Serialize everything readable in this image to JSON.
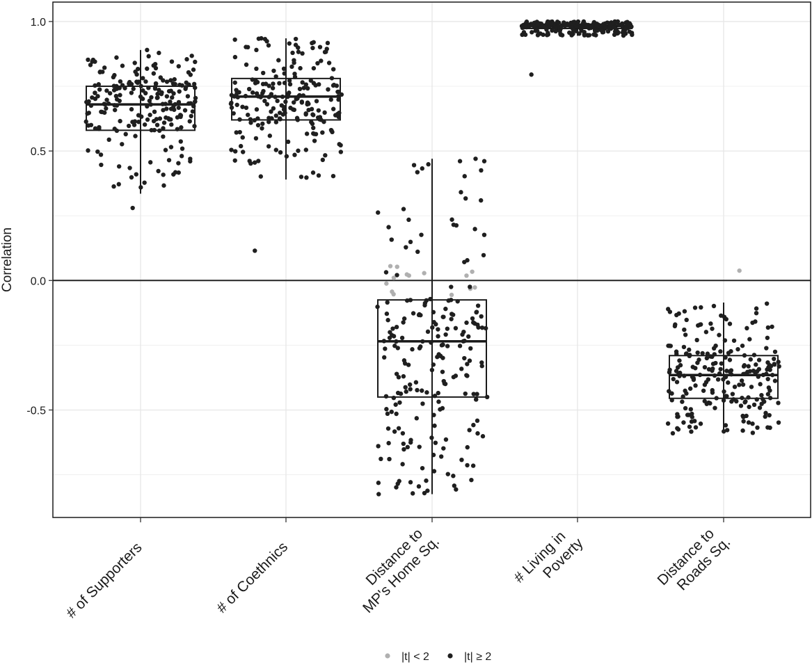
{
  "chart_data": {
    "type": "boxplot-jitter",
    "title": "",
    "xlabel": "",
    "ylabel": "Correlation",
    "ylim": [
      -0.915,
      1.075
    ],
    "yticks": [
      "1.0",
      "0.5",
      "0.0",
      "-0.5"
    ],
    "ytick_values": [
      1.0,
      0.5,
      0.0,
      -0.5
    ],
    "minor_yticks": [
      0.75,
      0.25,
      -0.25,
      -0.75
    ],
    "reference_line": 0,
    "grid": true,
    "legend": {
      "position": "bottom",
      "entries": [
        {
          "label": "|t| < 2",
          "color": "#b0b0b0"
        },
        {
          "label": "|t| ≥ 2",
          "color": "#1f1f1f"
        }
      ]
    },
    "categories": [
      {
        "lines": [
          "# of Supporters"
        ]
      },
      {
        "lines": [
          "# of Coethnics"
        ]
      },
      {
        "lines": [
          "Distance to",
          "MP's Home Sq."
        ]
      },
      {
        "lines": [
          "# Living in",
          "Poverty"
        ]
      },
      {
        "lines": [
          "Distance to",
          "Roads Sq."
        ]
      }
    ],
    "boxes": [
      {
        "q1": 0.58,
        "median": 0.68,
        "q3": 0.75,
        "whisker_low": 0.335,
        "whisker_high": 0.89,
        "min": 0.28,
        "max": 0.89,
        "n": 220,
        "insig_fraction": 0
      },
      {
        "q1": 0.62,
        "median": 0.71,
        "q3": 0.78,
        "whisker_low": 0.39,
        "whisker_high": 0.935,
        "min": 0.115,
        "max": 0.935,
        "n": 220,
        "insig_fraction": 0
      },
      {
        "q1": -0.45,
        "median": -0.235,
        "q3": -0.075,
        "whisker_low": -0.825,
        "whisker_high": 0.47,
        "min": -0.825,
        "max": 0.47,
        "n": 230,
        "insig_fraction": 0.06
      },
      {
        "q1": 0.973,
        "median": 0.982,
        "q3": 0.99,
        "whisker_low": 0.945,
        "whisker_high": 1.0,
        "min": 0.795,
        "max": 1.0,
        "n": 220,
        "insig_fraction": 0
      },
      {
        "q1": -0.455,
        "median": -0.365,
        "q3": -0.29,
        "whisker_low": -0.59,
        "whisker_high": -0.085,
        "min": -0.59,
        "max": 0.038,
        "n": 230,
        "insig_fraction": 0.02
      }
    ]
  }
}
